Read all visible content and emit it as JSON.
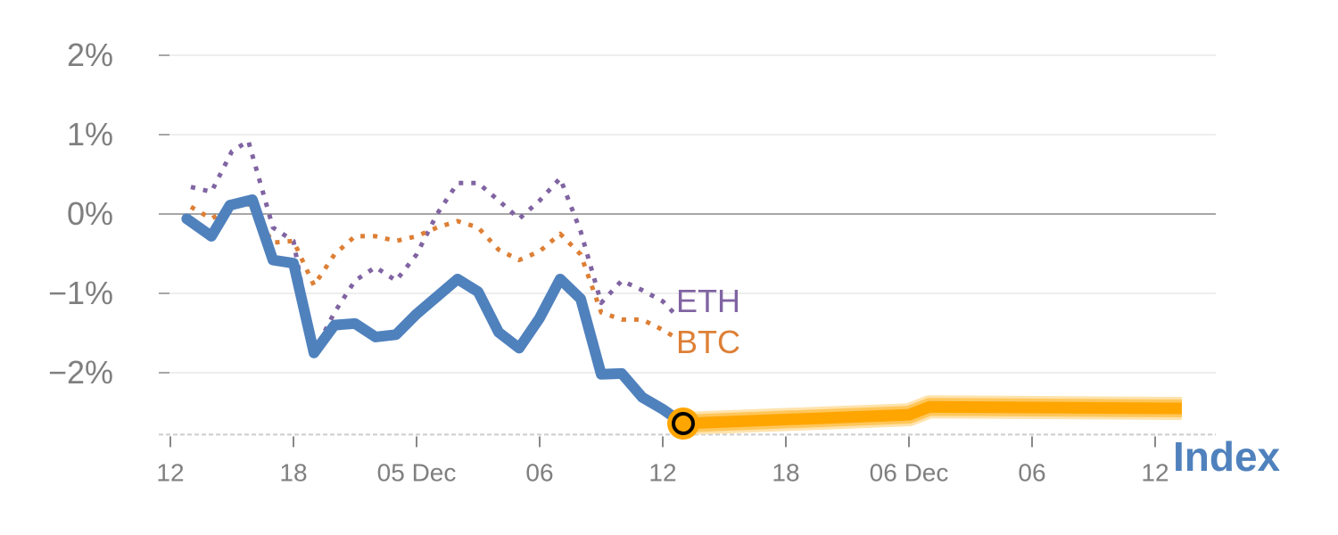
{
  "chart_data": {
    "type": "line",
    "title": "",
    "xlabel": "",
    "ylabel": "",
    "ylim": [
      -2.78,
      2.0
    ],
    "xlim_hours": [
      0,
      50
    ],
    "grid": true,
    "y_ticks": [
      {
        "v": 2,
        "label": "2%"
      },
      {
        "v": 1,
        "label": "1%"
      },
      {
        "v": 0,
        "label": "0%"
      },
      {
        "v": -1,
        "label": "−1%"
      },
      {
        "v": -2,
        "label": "−2%"
      }
    ],
    "x_ticks": [
      {
        "h": 0,
        "label": "12"
      },
      {
        "h": 6,
        "label": "18"
      },
      {
        "h": 12,
        "label": "05 Dec"
      },
      {
        "h": 18,
        "label": "06"
      },
      {
        "h": 24,
        "label": "12"
      },
      {
        "h": 30,
        "label": "18"
      },
      {
        "h": 36,
        "label": "06 Dec"
      },
      {
        "h": 42,
        "label": "06"
      },
      {
        "h": 48,
        "label": "12"
      }
    ],
    "series": [
      {
        "name": "ETH",
        "color": "#8064a2",
        "style": "dotted",
        "x": [
          1,
          2,
          3,
          3.8,
          5,
          6,
          7,
          8,
          9,
          10,
          11,
          12,
          13,
          14,
          15,
          16,
          17,
          18,
          19,
          20,
          21,
          22,
          23,
          24,
          24.7
        ],
        "values": [
          0.34,
          0.28,
          0.79,
          0.92,
          -0.17,
          -0.34,
          -1.74,
          -1.24,
          -0.84,
          -0.67,
          -0.84,
          -0.51,
          0.0,
          0.39,
          0.39,
          0.17,
          -0.06,
          0.17,
          0.45,
          -0.22,
          -1.12,
          -0.84,
          -0.96,
          -1.1,
          -1.29
        ]
      },
      {
        "name": "BTC",
        "color": "#dd7f35",
        "style": "dotted",
        "x": [
          1,
          2,
          3,
          3.8,
          5,
          6,
          7,
          8,
          9,
          10,
          11,
          12,
          13,
          14,
          15,
          16,
          17,
          18,
          19,
          20,
          21,
          22,
          23,
          24,
          24.7
        ],
        "values": [
          0.09,
          -0.06,
          0.09,
          0.13,
          -0.36,
          -0.34,
          -0.9,
          -0.51,
          -0.28,
          -0.28,
          -0.34,
          -0.28,
          -0.17,
          -0.09,
          -0.17,
          -0.45,
          -0.58,
          -0.47,
          -0.25,
          -0.51,
          -1.24,
          -1.33,
          -1.33,
          -1.46,
          -1.57
        ]
      },
      {
        "name": "Index",
        "color": "#4f81bd",
        "style": "solid",
        "x": [
          0.8,
          2,
          2.9,
          4,
          5,
          6,
          7,
          8,
          9,
          10,
          11,
          12,
          13,
          14,
          15,
          16,
          17,
          18,
          19,
          20,
          21,
          22,
          23,
          24,
          25
        ],
        "values": [
          -0.06,
          -0.28,
          0.11,
          0.18,
          -0.58,
          -0.62,
          -1.75,
          -1.4,
          -1.38,
          -1.55,
          -1.52,
          -1.26,
          -1.04,
          -0.82,
          -0.98,
          -1.49,
          -1.69,
          -1.31,
          -0.82,
          -1.07,
          -2.02,
          -2.01,
          -2.31,
          -2.46,
          -2.64
        ]
      },
      {
        "name": "Index forecast",
        "color": "#ffa500",
        "style": "band",
        "x": [
          25,
          36,
          37,
          49.3
        ],
        "values": [
          -2.64,
          -2.53,
          -2.43,
          -2.45
        ]
      }
    ],
    "annotations": [
      {
        "text": "ETH",
        "color": "#8064a2"
      },
      {
        "text": "BTC",
        "color": "#dd7f35"
      },
      {
        "text": "Index",
        "color": "#4f81bd"
      }
    ],
    "current_point": {
      "h": 25,
      "value": -2.64
    }
  }
}
